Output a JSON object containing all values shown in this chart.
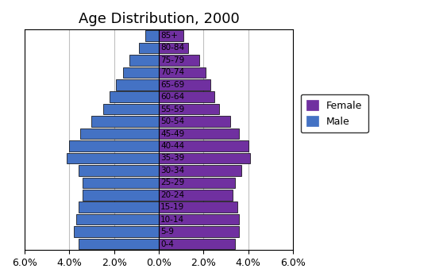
{
  "title": "Age Distribution, 2000",
  "age_groups": [
    "0-4",
    "5-9",
    "10-14",
    "15-19",
    "20-24",
    "25-29",
    "30-34",
    "35-39",
    "40-44",
    "45-49",
    "50-54",
    "55-59",
    "60-64",
    "65-69",
    "70-74",
    "75-79",
    "80-84",
    "85+"
  ],
  "male": [
    3.6,
    3.8,
    3.7,
    3.6,
    3.4,
    3.4,
    3.6,
    4.1,
    4.0,
    3.5,
    3.0,
    2.5,
    2.2,
    1.9,
    1.6,
    1.3,
    0.9,
    0.6
  ],
  "female": [
    3.4,
    3.6,
    3.6,
    3.5,
    3.3,
    3.4,
    3.7,
    4.1,
    4.0,
    3.6,
    3.2,
    2.7,
    2.5,
    2.3,
    2.1,
    1.8,
    1.3,
    1.1
  ],
  "male_color": "#4472C4",
  "female_color": "#7030A0",
  "background_color": "#FFFFFF",
  "bar_edge_color": "#000000",
  "xlim": 6.0,
  "xticks": [
    -6,
    -4,
    -2,
    0,
    2,
    4,
    6
  ],
  "xticklabels": [
    "6.0%",
    "4.0%",
    "2.0%",
    "0.0%",
    "2.0%",
    "4.0%",
    "6.0%"
  ],
  "grid_color": "#C0C0C0",
  "title_fontsize": 13,
  "tick_fontsize": 9,
  "label_fontsize": 7.5,
  "legend_fontsize": 9
}
